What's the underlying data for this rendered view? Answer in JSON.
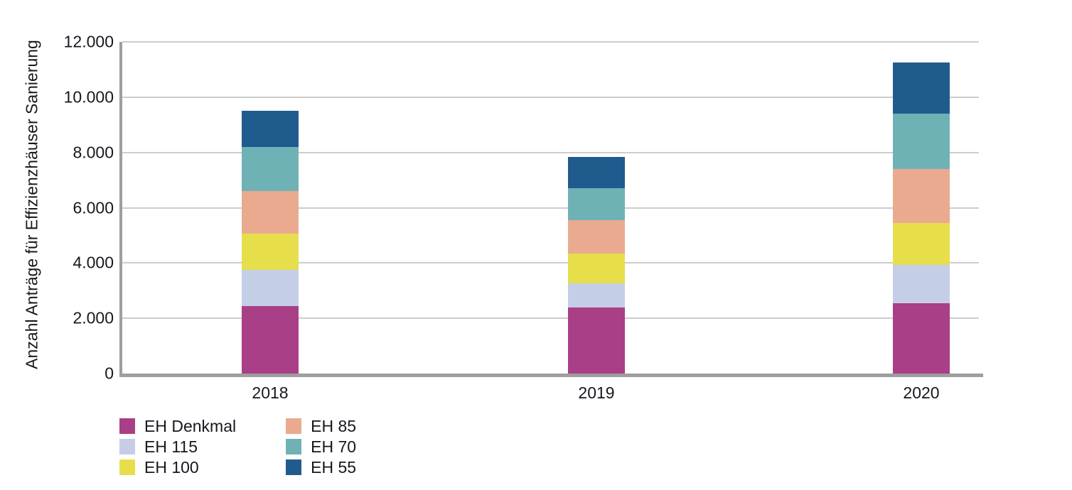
{
  "chart_data": {
    "type": "bar",
    "stacked": true,
    "title": "",
    "xlabel": "",
    "ylabel": "Anzahl Anträge für Effizienzhäuser Sanierung",
    "categories": [
      "2018",
      "2019",
      "2020"
    ],
    "series": [
      {
        "name": "EH Denkmal",
        "color": "#A93F87",
        "values": [
          2450,
          2400,
          2550
        ]
      },
      {
        "name": "EH 115",
        "color": "#C4CEE7",
        "values": [
          1300,
          860,
          1390
        ]
      },
      {
        "name": "EH 100",
        "color": "#E6DF4B",
        "values": [
          1310,
          1080,
          1500
        ]
      },
      {
        "name": "EH 85",
        "color": "#EAAA8F",
        "values": [
          1540,
          1220,
          1960
        ]
      },
      {
        "name": "EH 70",
        "color": "#6FB2B6",
        "values": [
          1600,
          1140,
          2000
        ]
      },
      {
        "name": "EH 55",
        "color": "#205B8E",
        "values": [
          1300,
          1150,
          1850
        ]
      }
    ],
    "totals": [
      9500,
      7850,
      11250
    ],
    "ylim": [
      0,
      12000
    ],
    "y_ticks": [
      {
        "value": 0,
        "label": "0"
      },
      {
        "value": 2000,
        "label": "2.000"
      },
      {
        "value": 4000,
        "label": "4.000"
      },
      {
        "value": 6000,
        "label": "6.000"
      },
      {
        "value": 8000,
        "label": "8.000"
      },
      {
        "value": 10000,
        "label": "10.000"
      },
      {
        "value": 12000,
        "label": "12.000"
      }
    ],
    "grid": true,
    "legend_position": "bottom-left",
    "legend_columns": [
      [
        "EH Denkmal",
        "EH 115",
        "EH 100"
      ],
      [
        "EH 85",
        "EH 70",
        "EH 55"
      ]
    ],
    "colors": {
      "gridline": "#cdcdcd",
      "axis": "#9e9e9e",
      "text": "#17171f"
    }
  }
}
